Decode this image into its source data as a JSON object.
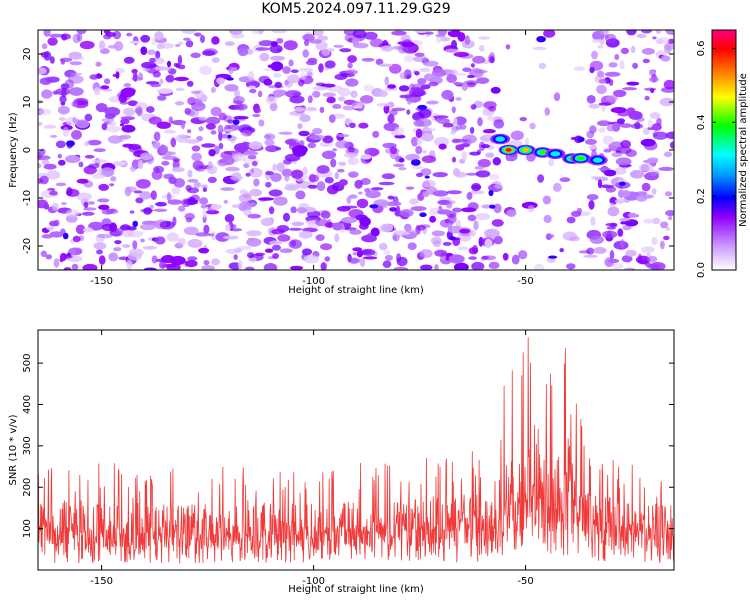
{
  "title": "KOM5.2024.097.11.29.G29",
  "colors": {
    "snr_line": "#f03a3a",
    "spectro_low": "#8f00ff",
    "signal_band": "rainbow"
  },
  "chart_data": [
    {
      "type": "heatmap",
      "xlabel": "Height of straight line (km)",
      "ylabel": "Frequency (Hz)",
      "xlim": [
        -165,
        -15
      ],
      "ylim": [
        -25,
        25
      ],
      "x_ticks": [
        -150,
        -100,
        -50
      ],
      "y_ticks": [
        -20,
        -10,
        0,
        10,
        20
      ],
      "colorbar": {
        "label": "Normalized spectral amplitude",
        "range": [
          0.0,
          0.65
        ],
        "ticks": [
          0.0,
          0.2,
          0.4,
          0.6
        ],
        "colormap": [
          "#ffffff",
          "#8f00ff",
          "#0000ff",
          "#00ffff",
          "#00ff00",
          "#ffff00",
          "#ff0000",
          "#ff0080"
        ]
      },
      "signal_trace": [
        {
          "x": -56,
          "y": 2.3,
          "amp": 0.33
        },
        {
          "x": -54,
          "y": 0.0,
          "amp": 0.62
        },
        {
          "x": -50,
          "y": 0.0,
          "amp": 0.5
        },
        {
          "x": -46,
          "y": -0.5,
          "amp": 0.42
        },
        {
          "x": -43,
          "y": -0.8,
          "amp": 0.36
        },
        {
          "x": -39,
          "y": -1.8,
          "amp": 0.4
        },
        {
          "x": -37,
          "y": -1.7,
          "amp": 0.44
        },
        {
          "x": -33,
          "y": -2.1,
          "amp": 0.3
        }
      ]
    },
    {
      "type": "line",
      "xlabel": "Height of straight line (km)",
      "ylabel": "SNR (10 * v/v)",
      "xlim": [
        -165,
        -15
      ],
      "ylim": [
        0,
        580
      ],
      "x_ticks": [
        -150,
        -100,
        -50
      ],
      "y_ticks": [
        100,
        200,
        300,
        400,
        500
      ],
      "series": [
        {
          "color": "#f03a3a",
          "envelope": [
            {
              "x": -165,
              "base": 110,
              "peak": 250
            },
            {
              "x": -150,
              "base": 100,
              "peak": 260
            },
            {
              "x": -130,
              "base": 100,
              "peak": 250
            },
            {
              "x": -110,
              "base": 100,
              "peak": 250
            },
            {
              "x": -90,
              "base": 105,
              "peak": 260
            },
            {
              "x": -75,
              "base": 110,
              "peak": 270
            },
            {
              "x": -60,
              "base": 120,
              "peak": 300
            },
            {
              "x": -52,
              "base": 180,
              "peak": 560
            },
            {
              "x": -48,
              "base": 200,
              "peak": 580
            },
            {
              "x": -44,
              "base": 150,
              "peak": 570
            },
            {
              "x": -40,
              "base": 200,
              "peak": 560
            },
            {
              "x": -35,
              "base": 120,
              "peak": 300
            },
            {
              "x": -25,
              "base": 100,
              "peak": 260
            },
            {
              "x": -15,
              "base": 100,
              "peak": 220
            }
          ]
        }
      ]
    }
  ]
}
